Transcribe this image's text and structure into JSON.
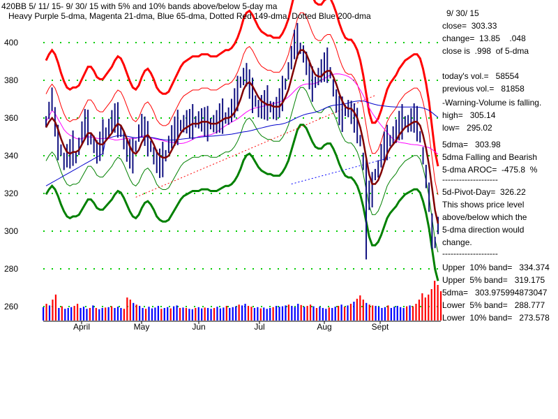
{
  "header": {
    "line1": "420BB   5/ 11/ 15- 9/ 30/ 15 with  5% and 10% bands above/below 5-day ma",
    "line2": "Heavy Purple 5-dma, Magenta 21-dma, Blue 65-dma, Dotted Red 149-dma, Dotted Blue 200-dma"
  },
  "info": {
    "date": "9/ 30/ 15",
    "close": "close=  303.33",
    "change": "change=  13.85    .048",
    "close_pct": "close is  .998  of 5-dma",
    "todays_vol": "today's vol.=   58554",
    "previous_vol": "previous vol.=   81858",
    "warning": "-Warning-Volume is falling.",
    "high": "high=   305.14",
    "low": "low=   295.02",
    "fivedma": "5dma=   303.98",
    "falling": "5dma Falling and Bearish",
    "aroc": "5-dma AROC=  -475.8  %",
    "dash1": "--------------------",
    "pivot": "5d-Pivot-Day=  326.22",
    "shows1": "This shows price level",
    "shows2": "above/below which the",
    "shows3": "5-dma direction would",
    "shows4": "change.",
    "dash2": "--------------------",
    "upper10": "Upper  10% band=   334.374",
    "upper5": "Upper  5% band=   319.175",
    "fivedma_full": "5dma=   303.975994873047",
    "lower5": "Lower  5% band=   288.777",
    "lower10": "Lower  10% band=   273.578"
  },
  "colors": {
    "price_bars": "#101080",
    "dma5": "#800000",
    "dma21": "#ff00ff",
    "dma65": "#0000cc",
    "dma149": "#ff0000",
    "dma200": "#0000ff",
    "band5": "#008000",
    "band10_upper": "#ff0000",
    "band10_lower": "#008000",
    "vol_red": "#ff0000",
    "vol_blue": "#0000ff",
    "gridline": "#00cc00"
  },
  "chart_data": {
    "type": "line",
    "y_ticks": [
      "400",
      "380",
      "360",
      "340",
      "320",
      "300",
      "280",
      "260"
    ],
    "ylim": [
      252,
      418
    ],
    "x_ticks": [
      "April",
      "May",
      "Jun",
      "Jul",
      "Aug",
      "Sept"
    ],
    "series": {
      "close": [
        358,
        364,
        370,
        358,
        347,
        343,
        337,
        340,
        341,
        344,
        339,
        345,
        352,
        357,
        355,
        349,
        346,
        342,
        345,
        350,
        352,
        355,
        358,
        360,
        359,
        353,
        348,
        343,
        341,
        340,
        345,
        352,
        356,
        353,
        349,
        345,
        340,
        337,
        336,
        338,
        340,
        346,
        350,
        353,
        355,
        356,
        357,
        358,
        357,
        358,
        358,
        359,
        359,
        358,
        357,
        357,
        357,
        358,
        360,
        361,
        360,
        361,
        364,
        368,
        373,
        379,
        382,
        383,
        378,
        372,
        369,
        365,
        366,
        367,
        368,
        366,
        364,
        365,
        368,
        373,
        378,
        385,
        392,
        399,
        401,
        397,
        394,
        389,
        383,
        378,
        379,
        382,
        385,
        387,
        388,
        384,
        376,
        369,
        364,
        362,
        364,
        365,
        363,
        360,
        356,
        348,
        337,
        327,
        319,
        322,
        330,
        333,
        340,
        345,
        347,
        348,
        351,
        353,
        356,
        358,
        358,
        357,
        359,
        360,
        357,
        350,
        340,
        329,
        318,
        300,
        294,
        303
      ],
      "dma5": [
        355,
        358,
        360,
        358,
        354,
        349,
        345,
        342,
        341,
        342,
        342,
        343,
        346,
        349,
        352,
        352,
        350,
        347,
        346,
        346,
        348,
        350,
        352,
        355,
        357,
        356,
        353,
        349,
        345,
        342,
        341,
        343,
        347,
        350,
        351,
        349,
        346,
        342,
        340,
        339,
        339,
        340,
        343,
        346,
        349,
        352,
        354,
        355,
        356,
        357,
        357,
        357,
        358,
        358,
        358,
        357,
        357,
        357,
        358,
        359,
        360,
        360,
        361,
        363,
        366,
        370,
        375,
        378,
        379,
        377,
        374,
        371,
        369,
        368,
        367,
        367,
        366,
        366,
        366,
        368,
        371,
        375,
        381,
        387,
        393,
        396,
        396,
        394,
        390,
        386,
        383,
        382,
        382,
        384,
        385,
        385,
        382,
        378,
        373,
        369,
        366,
        365,
        365,
        363,
        360,
        355,
        348,
        339,
        330,
        325,
        325,
        327,
        331,
        336,
        341,
        344,
        346,
        348,
        351,
        353,
        355,
        356,
        357,
        358,
        358,
        356,
        351,
        344,
        335,
        323,
        311,
        304
      ]
    },
    "volume": [
      {
        "h": 0.32,
        "c": "#0000ff"
      },
      {
        "h": 0.4,
        "c": "#ff0000"
      },
      {
        "h": 0.36,
        "c": "#0000ff"
      },
      {
        "h": 0.5,
        "c": "#ff0000"
      },
      {
        "h": 0.62,
        "c": "#ff0000"
      },
      {
        "h": 0.3,
        "c": "#0000ff"
      },
      {
        "h": 0.34,
        "c": "#ff0000"
      },
      {
        "h": 0.28,
        "c": "#0000ff"
      },
      {
        "h": 0.3,
        "c": "#0000ff"
      },
      {
        "h": 0.32,
        "c": "#0000ff"
      },
      {
        "h": 0.35,
        "c": "#ff0000"
      },
      {
        "h": 0.4,
        "c": "#ff0000"
      },
      {
        "h": 0.3,
        "c": "#0000ff"
      },
      {
        "h": 0.33,
        "c": "#0000ff"
      },
      {
        "h": 0.28,
        "c": "#0000ff"
      },
      {
        "h": 0.3,
        "c": "#ff0000"
      },
      {
        "h": 0.36,
        "c": "#0000ff"
      },
      {
        "h": 0.3,
        "c": "#ff0000"
      },
      {
        "h": 0.27,
        "c": "#0000ff"
      },
      {
        "h": 0.3,
        "c": "#0000ff"
      },
      {
        "h": 0.31,
        "c": "#ff0000"
      },
      {
        "h": 0.32,
        "c": "#0000ff"
      },
      {
        "h": 0.34,
        "c": "#ff0000"
      },
      {
        "h": 0.3,
        "c": "#0000ff"
      },
      {
        "h": 0.33,
        "c": "#0000ff"
      },
      {
        "h": 0.3,
        "c": "#0000ff"
      },
      {
        "h": 0.28,
        "c": "#ff0000"
      },
      {
        "h": 0.55,
        "c": "#ff0000"
      },
      {
        "h": 0.5,
        "c": "#ff0000"
      },
      {
        "h": 0.42,
        "c": "#0000ff"
      },
      {
        "h": 0.38,
        "c": "#ff0000"
      },
      {
        "h": 0.35,
        "c": "#0000ff"
      },
      {
        "h": 0.3,
        "c": "#0000ff"
      },
      {
        "h": 0.28,
        "c": "#ff0000"
      },
      {
        "h": 0.33,
        "c": "#0000ff"
      },
      {
        "h": 0.29,
        "c": "#0000ff"
      },
      {
        "h": 0.31,
        "c": "#0000ff"
      },
      {
        "h": 0.35,
        "c": "#0000ff"
      },
      {
        "h": 0.28,
        "c": "#ff0000"
      },
      {
        "h": 0.3,
        "c": "#0000ff"
      },
      {
        "h": 0.32,
        "c": "#0000ff"
      },
      {
        "h": 0.29,
        "c": "#ff0000"
      },
      {
        "h": 0.34,
        "c": "#0000ff"
      },
      {
        "h": 0.36,
        "c": "#0000ff"
      },
      {
        "h": 0.3,
        "c": "#ff0000"
      },
      {
        "h": 0.31,
        "c": "#0000ff"
      },
      {
        "h": 0.3,
        "c": "#ff0000"
      },
      {
        "h": 0.28,
        "c": "#0000ff"
      },
      {
        "h": 0.27,
        "c": "#0000ff"
      },
      {
        "h": 0.3,
        "c": "#ff0000"
      },
      {
        "h": 0.32,
        "c": "#0000ff"
      },
      {
        "h": 0.29,
        "c": "#0000ff"
      },
      {
        "h": 0.31,
        "c": "#ff0000"
      },
      {
        "h": 0.3,
        "c": "#0000ff"
      },
      {
        "h": 0.28,
        "c": "#0000ff"
      },
      {
        "h": 0.3,
        "c": "#ff0000"
      },
      {
        "h": 0.33,
        "c": "#0000ff"
      },
      {
        "h": 0.29,
        "c": "#0000ff"
      },
      {
        "h": 0.31,
        "c": "#0000ff"
      },
      {
        "h": 0.35,
        "c": "#ff0000"
      },
      {
        "h": 0.3,
        "c": "#0000ff"
      },
      {
        "h": 0.32,
        "c": "#0000ff"
      },
      {
        "h": 0.34,
        "c": "#0000ff"
      },
      {
        "h": 0.38,
        "c": "#ff0000"
      },
      {
        "h": 0.36,
        "c": "#0000ff"
      },
      {
        "h": 0.4,
        "c": "#0000ff"
      },
      {
        "h": 0.35,
        "c": "#ff0000"
      },
      {
        "h": 0.33,
        "c": "#ff0000"
      },
      {
        "h": 0.3,
        "c": "#0000ff"
      },
      {
        "h": 0.32,
        "c": "#0000ff"
      },
      {
        "h": 0.29,
        "c": "#ff0000"
      },
      {
        "h": 0.31,
        "c": "#0000ff"
      },
      {
        "h": 0.28,
        "c": "#0000ff"
      },
      {
        "h": 0.3,
        "c": "#0000ff"
      },
      {
        "h": 0.32,
        "c": "#ff0000"
      },
      {
        "h": 0.35,
        "c": "#0000ff"
      },
      {
        "h": 0.33,
        "c": "#0000ff"
      },
      {
        "h": 0.34,
        "c": "#0000ff"
      },
      {
        "h": 0.36,
        "c": "#0000ff"
      },
      {
        "h": 0.38,
        "c": "#ff0000"
      },
      {
        "h": 0.35,
        "c": "#0000ff"
      },
      {
        "h": 0.32,
        "c": "#0000ff"
      },
      {
        "h": 0.4,
        "c": "#0000ff"
      },
      {
        "h": 0.37,
        "c": "#ff0000"
      },
      {
        "h": 0.33,
        "c": "#0000ff"
      },
      {
        "h": 0.35,
        "c": "#ff0000"
      },
      {
        "h": 0.38,
        "c": "#ff0000"
      },
      {
        "h": 0.34,
        "c": "#0000ff"
      },
      {
        "h": 0.3,
        "c": "#ff0000"
      },
      {
        "h": 0.33,
        "c": "#0000ff"
      },
      {
        "h": 0.3,
        "c": "#0000ff"
      },
      {
        "h": 0.28,
        "c": "#0000ff"
      },
      {
        "h": 0.31,
        "c": "#ff0000"
      },
      {
        "h": 0.3,
        "c": "#0000ff"
      },
      {
        "h": 0.33,
        "c": "#0000ff"
      },
      {
        "h": 0.35,
        "c": "#ff0000"
      },
      {
        "h": 0.38,
        "c": "#0000ff"
      },
      {
        "h": 0.33,
        "c": "#ff0000"
      },
      {
        "h": 0.36,
        "c": "#0000ff"
      },
      {
        "h": 0.4,
        "c": "#ff0000"
      },
      {
        "h": 0.45,
        "c": "#0000ff"
      },
      {
        "h": 0.52,
        "c": "#ff0000"
      },
      {
        "h": 0.6,
        "c": "#ff0000"
      },
      {
        "h": 0.5,
        "c": "#ff0000"
      },
      {
        "h": 0.42,
        "c": "#0000ff"
      },
      {
        "h": 0.38,
        "c": "#ff0000"
      },
      {
        "h": 0.36,
        "c": "#ff0000"
      },
      {
        "h": 0.35,
        "c": "#0000ff"
      },
      {
        "h": 0.33,
        "c": "#0000ff"
      },
      {
        "h": 0.3,
        "c": "#0000ff"
      },
      {
        "h": 0.32,
        "c": "#0000ff"
      },
      {
        "h": 0.36,
        "c": "#ff0000"
      },
      {
        "h": 0.3,
        "c": "#0000ff"
      },
      {
        "h": 0.33,
        "c": "#0000ff"
      },
      {
        "h": 0.35,
        "c": "#0000ff"
      },
      {
        "h": 0.32,
        "c": "#0000ff"
      },
      {
        "h": 0.3,
        "c": "#0000ff"
      },
      {
        "h": 0.34,
        "c": "#ff0000"
      },
      {
        "h": 0.36,
        "c": "#0000ff"
      },
      {
        "h": 0.34,
        "c": "#ff0000"
      },
      {
        "h": 0.4,
        "c": "#ff0000"
      },
      {
        "h": 0.5,
        "c": "#ff0000"
      },
      {
        "h": 0.65,
        "c": "#ff0000"
      },
      {
        "h": 0.55,
        "c": "#ff0000"
      },
      {
        "h": 0.62,
        "c": "#ff0000"
      },
      {
        "h": 0.75,
        "c": "#ff0000"
      },
      {
        "h": 0.95,
        "c": "#ff0000"
      },
      {
        "h": 0.85,
        "c": "#ff0000"
      },
      {
        "h": 0.7,
        "c": "#ff0000"
      }
    ]
  }
}
